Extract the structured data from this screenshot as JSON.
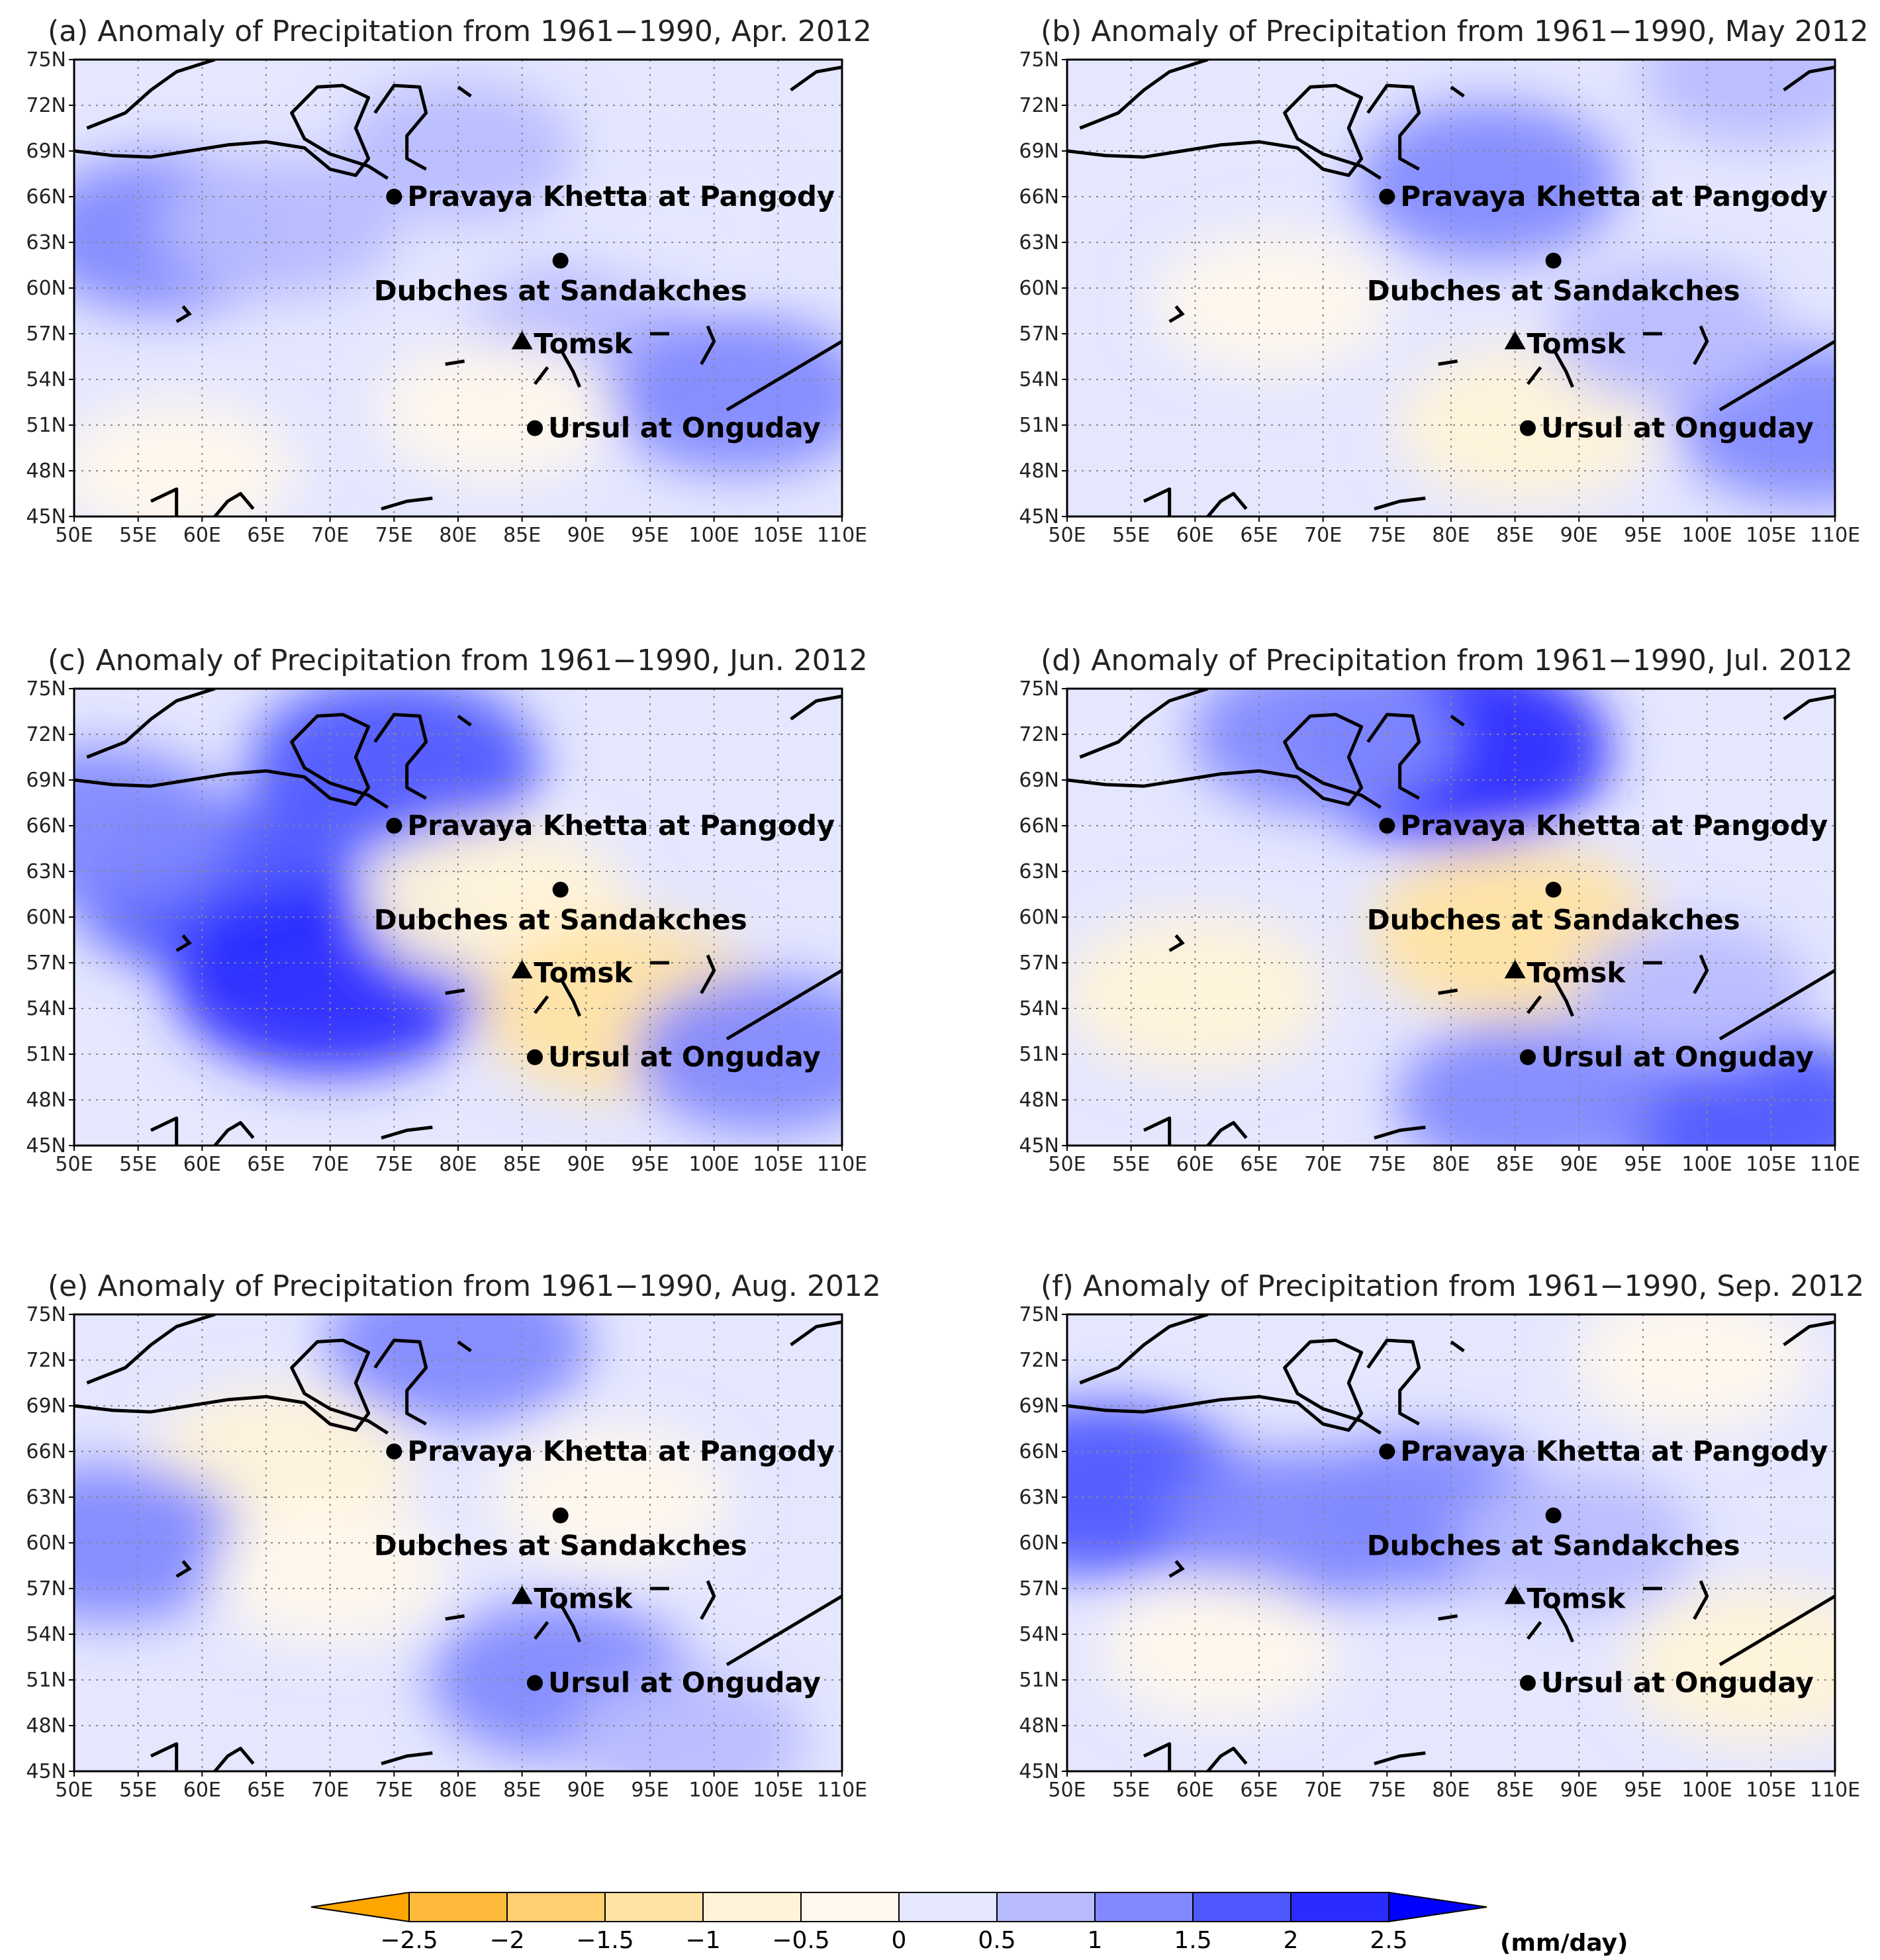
{
  "figure": {
    "x_ticks": [
      "50E",
      "55E",
      "60E",
      "65E",
      "70E",
      "75E",
      "80E",
      "85E",
      "90E",
      "95E",
      "100E",
      "105E",
      "110E"
    ],
    "y_ticks": [
      "75N",
      "72N",
      "69N",
      "66N",
      "63N",
      "60N",
      "57N",
      "54N",
      "51N",
      "48N",
      "45N"
    ],
    "stations": [
      {
        "name": "Pravaya Khetta at Pangody",
        "lon": 75,
        "lat": 66,
        "marker": "circle"
      },
      {
        "name": "Dubches at Sandakches",
        "lon": 88,
        "lat": 61.8,
        "marker": "circle"
      },
      {
        "name": "Tomsk",
        "lon": 85,
        "lat": 56.5,
        "marker": "triangle"
      },
      {
        "name": "Ursul at Onguday",
        "lon": 86,
        "lat": 50.8,
        "marker": "circle"
      }
    ],
    "panels": [
      {
        "title": "(a) Anomaly of Precipitation from 1961−1990, Apr. 2012",
        "month": "Apr. 2012",
        "anomaly_regions": [
          {
            "lon": 57,
            "lat": 63.5,
            "value": 1.0
          },
          {
            "lon": 66,
            "lat": 64,
            "value": 0.5
          },
          {
            "lon": 80,
            "lat": 69,
            "value": 0.5
          },
          {
            "lon": 90,
            "lat": 57,
            "value": 0.5
          },
          {
            "lon": 102,
            "lat": 53,
            "value": 1.0
          },
          {
            "lon": 58,
            "lat": 48,
            "value": -0.5
          },
          {
            "lon": 83,
            "lat": 52,
            "value": -0.5
          },
          {
            "lon": 97,
            "lat": 64,
            "value": 0.0
          }
        ]
      },
      {
        "title": "(b) Anomaly of Precipitation from 1961−1990, May 2012",
        "month": "May 2012",
        "anomaly_regions": [
          {
            "lon": 83,
            "lat": 67,
            "value": 1.0
          },
          {
            "lon": 104,
            "lat": 74,
            "value": 0.5
          },
          {
            "lon": 66,
            "lat": 59,
            "value": -0.5
          },
          {
            "lon": 86,
            "lat": 51,
            "value": -1.0
          },
          {
            "lon": 108,
            "lat": 51,
            "value": 1.0
          },
          {
            "lon": 97,
            "lat": 57,
            "value": 0.5
          }
        ]
      },
      {
        "title": "(c) Anomaly of Precipitation from 1961−1990, Jun. 2012",
        "month": "Jun. 2012",
        "anomaly_regions": [
          {
            "lon": 61,
            "lat": 62,
            "value": 1.5
          },
          {
            "lon": 70,
            "lat": 56,
            "value": 2.0
          },
          {
            "lon": 75,
            "lat": 70,
            "value": 1.5
          },
          {
            "lon": 83,
            "lat": 61,
            "value": -1.0
          },
          {
            "lon": 93,
            "lat": 54,
            "value": -1.5
          },
          {
            "lon": 104,
            "lat": 51,
            "value": 1.0
          },
          {
            "lon": 52,
            "lat": 66,
            "value": 1.0
          }
        ]
      },
      {
        "title": "(d) Anomaly of Precipitation from 1961−1990, Jul. 2012",
        "month": "Jul. 2012",
        "anomaly_regions": [
          {
            "lon": 80,
            "lat": 71,
            "value": 2.0
          },
          {
            "lon": 70,
            "lat": 72,
            "value": 1.0
          },
          {
            "lon": 85,
            "lat": 59,
            "value": -1.5
          },
          {
            "lon": 60,
            "lat": 55,
            "value": -1.0
          },
          {
            "lon": 103,
            "lat": 47,
            "value": 1.5
          },
          {
            "lon": 86,
            "lat": 48,
            "value": 1.0
          },
          {
            "lon": 99,
            "lat": 55,
            "value": 0.5
          }
        ]
      },
      {
        "title": "(e) Anomaly of Precipitation from 1961−1990, Aug. 2012",
        "month": "Aug. 2012",
        "anomaly_regions": [
          {
            "lon": 66,
            "lat": 65,
            "value": -1.0
          },
          {
            "lon": 92,
            "lat": 63,
            "value": -0.5
          },
          {
            "lon": 53,
            "lat": 60,
            "value": 1.0
          },
          {
            "lon": 88,
            "lat": 51,
            "value": 1.0
          },
          {
            "lon": 80,
            "lat": 73,
            "value": 1.0
          },
          {
            "lon": 70,
            "lat": 58,
            "value": -0.5
          },
          {
            "lon": 98,
            "lat": 47,
            "value": 0.5
          }
        ]
      },
      {
        "title": "(f) Anomaly of Precipitation from 1961−1990, Sep. 2012",
        "month": "Sep. 2012",
        "anomaly_regions": [
          {
            "lon": 53,
            "lat": 63.5,
            "value": 1.5
          },
          {
            "lon": 68,
            "lat": 61,
            "value": 1.0
          },
          {
            "lon": 78,
            "lat": 62,
            "value": 1.0
          },
          {
            "lon": 90,
            "lat": 60,
            "value": 0.5
          },
          {
            "lon": 62,
            "lat": 53,
            "value": -0.5
          },
          {
            "lon": 104,
            "lat": 52,
            "value": -1.0
          },
          {
            "lon": 99,
            "lat": 72,
            "value": -0.5
          }
        ]
      }
    ],
    "colorbar": {
      "levels": [
        "−2.5",
        "−2",
        "−1.5",
        "−1",
        "−0.5",
        "0",
        "0.5",
        "1",
        "1.5",
        "2",
        "2.5"
      ],
      "colors": [
        "#FFA500",
        "#FFBA3C",
        "#FFCF70",
        "#FFE3A4",
        "#FFF3D9",
        "#FFF8EC",
        "#E5E7FF",
        "#B8BCFF",
        "#8289FF",
        "#4F58FF",
        "#2A2CFF",
        "#0000FF"
      ],
      "unit": "(mm/day)"
    }
  }
}
